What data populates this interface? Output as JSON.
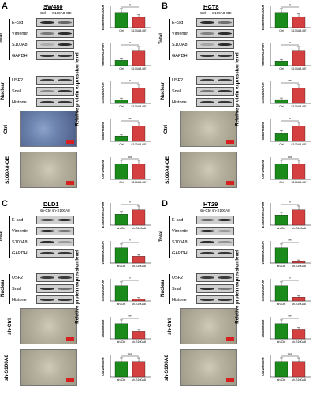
{
  "panels": [
    {
      "letter": "A",
      "line": "SW480",
      "conditions": [
        "Ctrl",
        "S100A8-OE"
      ],
      "groups": {
        "total": "Total",
        "nuclear": "Nuclear"
      },
      "total_labels": [
        "E-cad",
        "Vimentin",
        "S100A8",
        "GAPDH"
      ],
      "nuclear_labels": [
        "USF2",
        "Snail",
        "Histone"
      ],
      "photo_labels": [
        "Ctrl",
        "S100A8-OE"
      ],
      "ylabel": "Relative protein expression level",
      "photo_style": [
        "blue",
        "gray"
      ]
    },
    {
      "letter": "B",
      "line": "HCT8",
      "conditions": [
        "Ctrl",
        "S100A8-OE"
      ],
      "groups": {
        "total": "Total",
        "nuclear": "Nuclear"
      },
      "total_labels": [
        "E-cad",
        "Vimentin",
        "S100A8",
        "GAPDH"
      ],
      "nuclear_labels": [
        "USF2",
        "Snail",
        "Histone"
      ],
      "photo_labels": [
        "Ctrl",
        "S100A8-OE"
      ],
      "ylabel": "Relative protein expression level",
      "photo_style": [
        "gray",
        "gray"
      ]
    },
    {
      "letter": "C",
      "line": "DLD1",
      "conditions": [
        "sh-Ctrl",
        "sh-S100A8"
      ],
      "groups": {
        "total": "Total",
        "nuclear": "Nuclear"
      },
      "total_labels": [
        "E-cad",
        "Vimentin",
        "S100A8",
        "GAPDH"
      ],
      "nuclear_labels": [
        "USF2",
        "Snail",
        "Histone"
      ],
      "photo_labels": [
        "sh-Ctrl",
        "sh-S100A8"
      ],
      "ylabel": "Relative protein expression level",
      "photo_style": [
        "gray",
        "gray"
      ]
    },
    {
      "letter": "D",
      "line": "HT29",
      "conditions": [
        "sh-Ctrl",
        "sh-S100A8"
      ],
      "groups": {
        "total": "Total",
        "nuclear": "Nuclear"
      },
      "total_labels": [
        "E-cad",
        "Vimentin",
        "S100A8",
        "GAPDH"
      ],
      "nuclear_labels": [
        "USF2",
        "Snail",
        "Histone"
      ],
      "photo_labels": [
        "sh-Ctrl",
        "sh-S100A8"
      ],
      "ylabel": "Relative protein expression level",
      "photo_style": [
        "gray",
        "gray"
      ]
    }
  ],
  "chart_data": [
    {
      "panel": "A",
      "type": "bar",
      "categories": [
        "Ctrl",
        "S100A8-OE"
      ],
      "colors": [
        "#1a8a1a",
        "#d44040"
      ],
      "plots": [
        {
          "ylabel": "E-cadherin/GAPDH",
          "values": [
            1.0,
            0.68
          ],
          "sig": "*"
        },
        {
          "ylabel": "Vimentin/GAPDH",
          "values": [
            0.9,
            2.6
          ],
          "sig": "*"
        },
        {
          "ylabel": "S100A8/GAPDH",
          "values": [
            1.0,
            4.0
          ],
          "sig": "*"
        },
        {
          "ylabel": "Snail/Histone",
          "values": [
            1.0,
            2.8
          ],
          "sig": "**"
        },
        {
          "ylabel": "USF2/Histone",
          "values": [
            1.0,
            1.0
          ],
          "sig": "ns"
        }
      ]
    },
    {
      "panel": "B",
      "type": "bar",
      "categories": [
        "Ctrl",
        "S100A8-OE"
      ],
      "colors": [
        "#1a8a1a",
        "#d44040"
      ],
      "plots": [
        {
          "ylabel": "E-cadherin/GAPDH",
          "values": [
            1.0,
            0.72
          ],
          "sig": "*"
        },
        {
          "ylabel": "Vimentin/GAPDH",
          "values": [
            0.9,
            3.0
          ],
          "sig": "*"
        },
        {
          "ylabel": "S100A8/GAPDH",
          "values": [
            1.0,
            3.9
          ],
          "sig": "**"
        },
        {
          "ylabel": "Snail/Histone",
          "values": [
            1.0,
            1.8
          ],
          "sig": "*"
        },
        {
          "ylabel": "USF2/Histone",
          "values": [
            1.0,
            1.0
          ],
          "sig": "ns"
        }
      ]
    },
    {
      "panel": "C",
      "type": "bar",
      "categories": [
        "sh-Ctrl",
        "sh-S100A8"
      ],
      "colors": [
        "#1a8a1a",
        "#d44040"
      ],
      "plots": [
        {
          "ylabel": "E-cadherin/GAPDH",
          "values": [
            1.0,
            1.4
          ],
          "sig": "*"
        },
        {
          "ylabel": "Vimentin/GAPDH",
          "values": [
            1.0,
            0.45
          ],
          "sig": "*"
        },
        {
          "ylabel": "S100A8/GAPDH",
          "values": [
            1.0,
            0.12
          ],
          "sig": "*"
        },
        {
          "ylabel": "Snail/Histone",
          "values": [
            1.0,
            0.5
          ],
          "sig": "**"
        },
        {
          "ylabel": "USF2/Histone",
          "values": [
            1.0,
            1.0
          ],
          "sig": "ns"
        }
      ]
    },
    {
      "panel": "D",
      "type": "bar",
      "categories": [
        "sh-Ctrl",
        "sh-S100A8"
      ],
      "colors": [
        "#1a8a1a",
        "#d44040"
      ],
      "plots": [
        {
          "ylabel": "E-cadherin/GAPDH",
          "values": [
            1.0,
            1.5
          ],
          "sig": "*"
        },
        {
          "ylabel": "Vimentin/GAPDH",
          "values": [
            1.0,
            0.1
          ],
          "sig": "**"
        },
        {
          "ylabel": "S100A8/GAPDH",
          "values": [
            1.0,
            0.25
          ],
          "sig": "*"
        },
        {
          "ylabel": "Snail/Histone",
          "values": [
            1.0,
            0.6
          ],
          "sig": "**"
        },
        {
          "ylabel": "USF2/Histone",
          "values": [
            1.0,
            1.0
          ],
          "sig": "ns"
        }
      ]
    }
  ]
}
